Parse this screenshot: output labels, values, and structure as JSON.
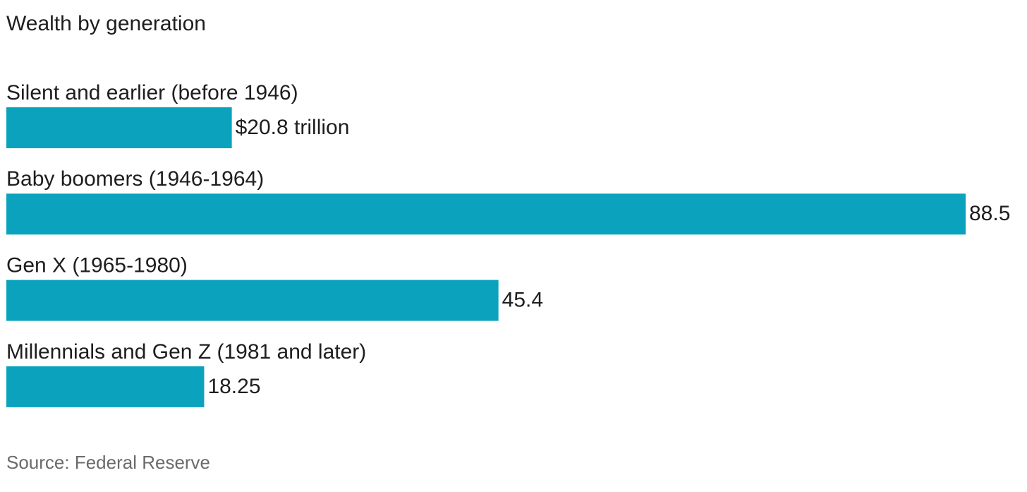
{
  "chart_data": {
    "type": "hbar",
    "title": "Wealth by generation",
    "categories": [
      "Silent and earlier (before 1946)",
      "Baby boomers (1946-1964)",
      "Gen X (1965-1980)",
      "Millennials and Gen Z (1981 and later)"
    ],
    "values": [
      20.8,
      88.5,
      45.4,
      18.25
    ],
    "value_labels": [
      "$20.8 trillion",
      "88.5",
      "45.4",
      "18.25"
    ],
    "color": "#0aa2bc",
    "source": "Source: Federal Reserve"
  }
}
